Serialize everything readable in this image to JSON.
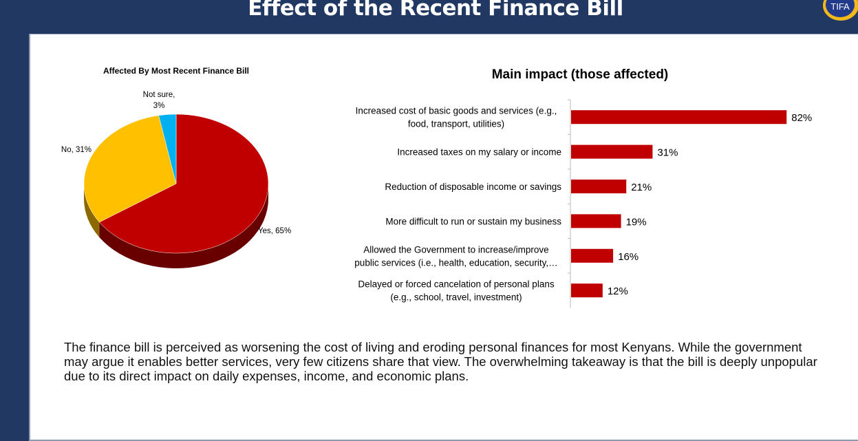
{
  "header": {
    "title": "Effect of the Recent Finance Bill",
    "logo": "TIFA"
  },
  "colors": {
    "frame": "#213862",
    "red": "#c00000",
    "yellow": "#ffc000",
    "blue": "#00b0f0"
  },
  "chart_data": [
    {
      "type": "pie",
      "title": "Affected By Most Recent Finance Bill",
      "slices": [
        {
          "label": "Yes, 65%",
          "name": "Yes",
          "value": 65,
          "color": "#c00000"
        },
        {
          "label": "No, 31%",
          "name": "No",
          "value": 31,
          "color": "#ffc000"
        },
        {
          "label": "Not sure, 3%",
          "name": "Not sure",
          "value": 3,
          "color": "#00b0f0"
        }
      ]
    },
    {
      "type": "bar",
      "orientation": "horizontal",
      "title": "Main impact (those affected)",
      "categories": [
        [
          "Increased cost of basic goods and services (e.g.,",
          "food, transport, utilities)"
        ],
        [
          "Increased taxes on my salary or income"
        ],
        [
          "Reduction of disposable income or savings"
        ],
        [
          "More difficult to run or sustain my business"
        ],
        [
          "Allowed the Government to increase/improve",
          "public services (i.e., health, education, security,…"
        ],
        [
          "Delayed or forced cancelation of personal plans",
          "(e.g., school, travel, investment)"
        ]
      ],
      "values": [
        82,
        31,
        21,
        19,
        16,
        12
      ],
      "labels": [
        "82%",
        "31%",
        "21%",
        "19%",
        "16%",
        "12%"
      ],
      "xlim": [
        0,
        100
      ],
      "color": "#c00000"
    }
  ],
  "summary": "The finance bill is perceived as worsening the cost of living and eroding personal finances for most Kenyans. While the government may argue it enables better services, very few citizens share that view. The overwhelming takeaway is that the bill is deeply unpopular due to its direct impact on daily expenses, income, and economic plans."
}
